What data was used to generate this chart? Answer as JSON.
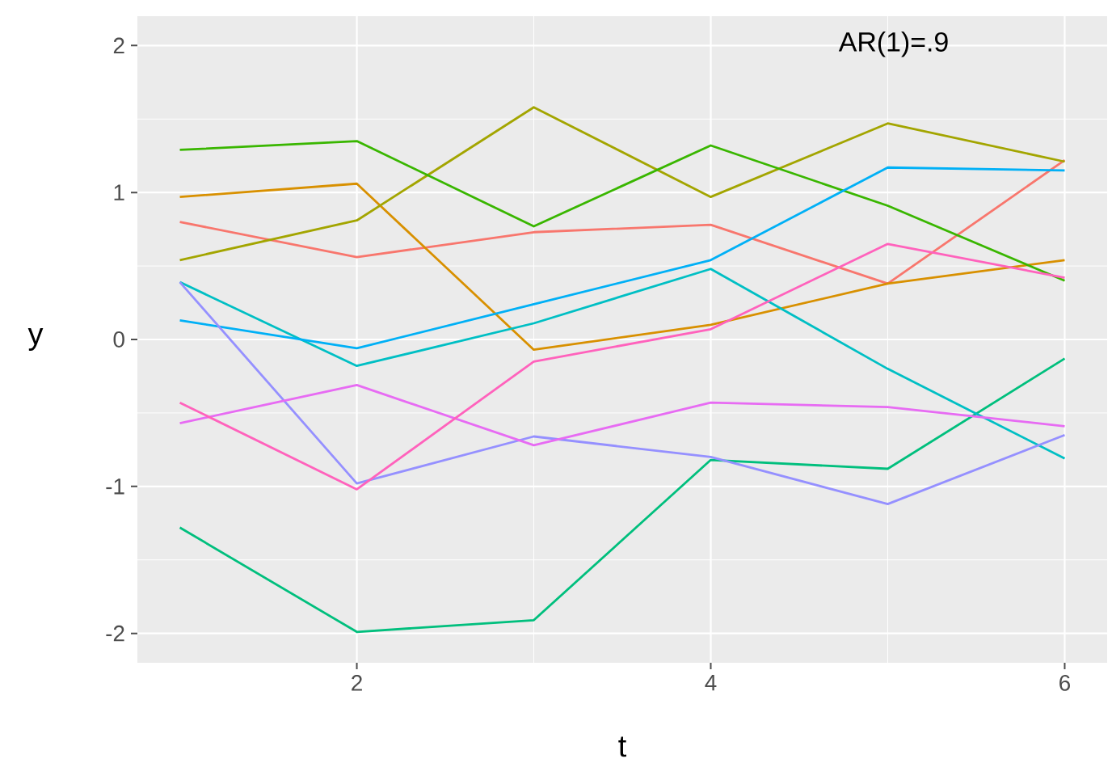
{
  "chart_data": {
    "type": "line",
    "xlabel": "t",
    "ylabel": "y",
    "annotations": [
      "AR(1)=.9"
    ],
    "x": [
      1,
      2,
      3,
      4,
      5,
      6
    ],
    "xlim": [
      0.76,
      6.24
    ],
    "ylim": [
      -2.2,
      2.2
    ],
    "xticks": [
      2,
      4,
      6
    ],
    "yticks": [
      -2,
      -1,
      0,
      1,
      2
    ],
    "grid": true,
    "series": [
      {
        "color": "#F8766D",
        "values": [
          0.8,
          0.56,
          0.73,
          0.78,
          0.38,
          1.22
        ]
      },
      {
        "color": "#D89000",
        "values": [
          0.97,
          1.06,
          -0.07,
          0.1,
          0.38,
          0.54
        ]
      },
      {
        "color": "#A3A500",
        "values": [
          0.54,
          0.81,
          1.58,
          0.97,
          1.47,
          1.21
        ]
      },
      {
        "color": "#39B600",
        "values": [
          1.29,
          1.35,
          0.77,
          1.32,
          0.91,
          0.4
        ]
      },
      {
        "color": "#00BF7D",
        "values": [
          -1.28,
          -1.99,
          -1.91,
          -0.82,
          -0.88,
          -0.13
        ]
      },
      {
        "color": "#00BFC4",
        "values": [
          0.39,
          -0.18,
          0.11,
          0.48,
          -0.2,
          -0.81
        ]
      },
      {
        "color": "#00B0F6",
        "values": [
          0.13,
          -0.06,
          0.24,
          0.54,
          1.17,
          1.15
        ]
      },
      {
        "color": "#9590FF",
        "values": [
          0.39,
          -0.98,
          -0.66,
          -0.8,
          -1.12,
          -0.65
        ]
      },
      {
        "color": "#E76BF3",
        "values": [
          -0.57,
          -0.31,
          -0.72,
          -0.43,
          -0.46,
          -0.59
        ]
      },
      {
        "color": "#FF62BC",
        "values": [
          -0.43,
          -1.02,
          -0.15,
          0.07,
          0.65,
          0.42
        ]
      }
    ]
  }
}
